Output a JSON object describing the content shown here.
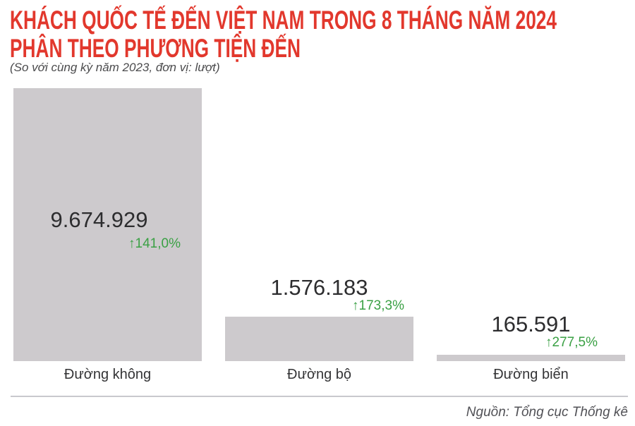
{
  "header": {
    "title_line1": "KHÁCH QUỐC TẾ ĐẾN VIỆT NAM TRONG 8 THÁNG NĂM 2024",
    "title_line2": "PHÂN THEO PHƯƠNG TIỆN ĐẾN",
    "subtitle": "(So với cùng kỳ năm 2023, đơn vị: lượt)"
  },
  "footer": {
    "source": "Nguồn: Tổng cục Thống kê"
  },
  "colors": {
    "title_red": "#e2382d",
    "bar_gray": "#cdcacd",
    "growth_green": "#3aa044",
    "value_dark": "#2d2d2f",
    "divider_gray": "#c9c9cd"
  },
  "chart_data": {
    "type": "bar",
    "orientation": "vertical",
    "title": "KHÁCH QUỐC TẾ ĐẾN VIỆT NAM TRONG 8 THÁNG NĂM 2024 PHÂN THEO PHƯƠNG TIỆN ĐẾN",
    "subtitle": "(So với cùng kỳ năm 2023, đơn vị: lượt)",
    "source": "Nguồn: Tổng cục Thống kê",
    "unit": "lượt",
    "categories": [
      "Đường không",
      "Đường bộ",
      "Đường biển"
    ],
    "values": [
      9674929,
      1576183,
      165591
    ],
    "value_labels": [
      "9.674.929",
      "1.576.183",
      "165.591"
    ],
    "growth_vs_2023": [
      "↑141,0%",
      "↑173,3%",
      "↑277,5%"
    ],
    "bar_color": "#cdcacd",
    "ylim": [
      0,
      9674929
    ],
    "grid": false,
    "legend": false
  }
}
